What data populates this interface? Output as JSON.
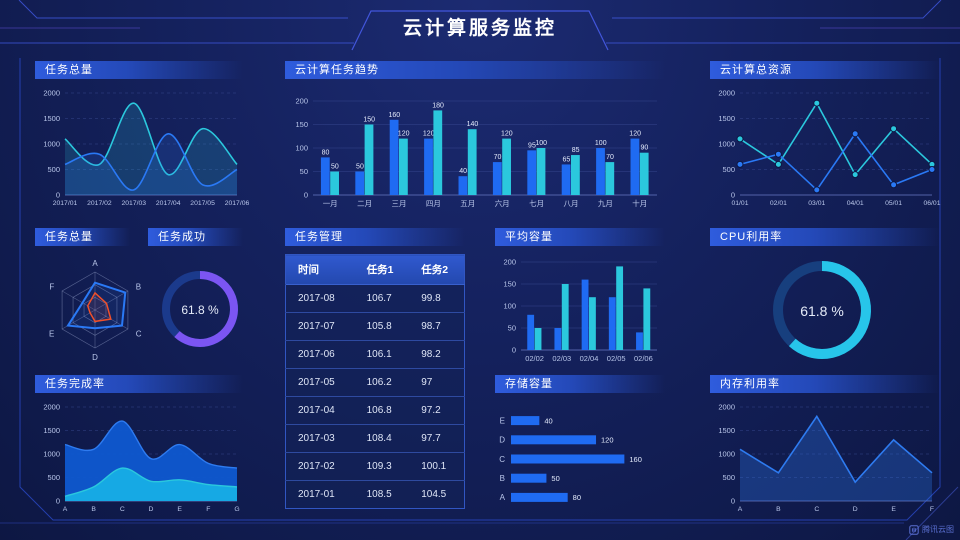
{
  "header": {
    "title": "云计算服务监控"
  },
  "watermark": {
    "label": "腾讯云图"
  },
  "panels": {
    "taskTotalLine": {
      "title": "任务总量"
    },
    "taskTrend": {
      "title": "云计算任务趋势"
    },
    "totalResource": {
      "title": "云计算总资源"
    },
    "taskRadar": {
      "title": "任务总量"
    },
    "taskSuccess": {
      "title": "任务成功"
    },
    "taskTable": {
      "title": "任务管理"
    },
    "avgCapacity": {
      "title": "平均容量"
    },
    "cpu": {
      "title": "CPU利用率"
    },
    "taskCompletion": {
      "title": "任务完成率"
    },
    "storage": {
      "title": "存储容量"
    },
    "memory": {
      "title": "内存利用率"
    }
  },
  "table": {
    "headers": [
      "时间",
      "任务1",
      "任务2"
    ],
    "rows": [
      [
        "2017-08",
        "106.7",
        "99.8"
      ],
      [
        "2017-07",
        "105.8",
        "98.7"
      ],
      [
        "2017-06",
        "106.1",
        "98.2"
      ],
      [
        "2017-05",
        "106.2",
        "97"
      ],
      [
        "2017-04",
        "106.8",
        "97.2"
      ],
      [
        "2017-03",
        "108.4",
        "97.7"
      ],
      [
        "2017-02",
        "109.3",
        "100.1"
      ],
      [
        "2017-01",
        "108.5",
        "104.5"
      ]
    ]
  },
  "chart_data": [
    {
      "id": "taskTotalLine",
      "type": "line",
      "smooth": true,
      "x": [
        "2017/01",
        "2017/02",
        "2017/03",
        "2017/04",
        "2017/05",
        "2017/06"
      ],
      "ylim": [
        0,
        2000
      ],
      "yticks": [
        0,
        500,
        1000,
        1500,
        2000
      ],
      "series": [
        {
          "name": "series-cyan",
          "color": "#2bc8dd",
          "fill": 0.18,
          "values": [
            1100,
            600,
            1800,
            400,
            1300,
            600
          ]
        },
        {
          "name": "series-blue",
          "color": "#2a79f5",
          "fill": 0.18,
          "values": [
            600,
            800,
            100,
            1200,
            200,
            500
          ]
        }
      ]
    },
    {
      "id": "taskTrend",
      "type": "bar",
      "labels": true,
      "categories": [
        "一月",
        "二月",
        "三月",
        "四月",
        "五月",
        "六月",
        "七月",
        "八月",
        "九月",
        "十月"
      ],
      "ylim": [
        0,
        200
      ],
      "yticks": [
        0,
        50,
        100,
        150,
        200
      ],
      "series": [
        {
          "name": "series-blue",
          "color": "#1f6bf2",
          "values": [
            80,
            50,
            160,
            120,
            40,
            70,
            95,
            65,
            100,
            120
          ]
        },
        {
          "name": "series-cyan",
          "color": "#2bc8dd",
          "values": [
            50,
            150,
            120,
            180,
            140,
            120,
            100,
            85,
            70,
            90
          ]
        }
      ]
    },
    {
      "id": "totalResource",
      "type": "line",
      "smooth": false,
      "marker": true,
      "x": [
        "01/01",
        "02/01",
        "03/01",
        "04/01",
        "05/01",
        "06/01"
      ],
      "ylim": [
        0,
        2000
      ],
      "yticks": [
        0,
        500,
        1000,
        1500,
        2000
      ],
      "series": [
        {
          "name": "series-cyan",
          "color": "#2bc8dd",
          "values": [
            1100,
            600,
            1800,
            400,
            1300,
            600
          ]
        },
        {
          "name": "series-blue",
          "color": "#2a79f5",
          "values": [
            600,
            800,
            100,
            1200,
            200,
            500
          ]
        }
      ]
    },
    {
      "id": "taskRadar",
      "type": "radar",
      "axes": [
        "A",
        "B",
        "C",
        "D",
        "E",
        "F"
      ],
      "max": 100,
      "levels": 3,
      "series": [
        {
          "name": "series-blue",
          "color": "#2a79f5",
          "values": [
            72,
            92,
            82,
            48,
            82,
            38
          ]
        },
        {
          "name": "series-red",
          "color": "#f0502a",
          "values": [
            45,
            35,
            48,
            30,
            15,
            22
          ]
        }
      ]
    },
    {
      "id": "taskSuccess",
      "type": "donut",
      "value": 61.8,
      "label": "61.8 %",
      "color": "#7b55f2",
      "track": "#1b3a8c"
    },
    {
      "id": "avgCapacity",
      "type": "bar",
      "labels": false,
      "categories": [
        "02/02",
        "02/03",
        "02/04",
        "02/05",
        "02/06"
      ],
      "ylim": [
        0,
        200
      ],
      "yticks": [
        0,
        50,
        100,
        150,
        200
      ],
      "series": [
        {
          "name": "series-blue",
          "color": "#1f6bf2",
          "values": [
            80,
            50,
            160,
            120,
            40
          ]
        },
        {
          "name": "series-cyan",
          "color": "#2bc8dd",
          "values": [
            50,
            150,
            120,
            190,
            140
          ]
        }
      ]
    },
    {
      "id": "cpu",
      "type": "donut",
      "value": 61.8,
      "label": "61.8 %",
      "color": "#27c5ea",
      "track": "#173f7e"
    },
    {
      "id": "taskCompletion",
      "type": "area",
      "smooth": true,
      "x": [
        "A",
        "B",
        "C",
        "D",
        "E",
        "F",
        "G"
      ],
      "ylim": [
        0,
        2000
      ],
      "yticks": [
        0,
        500,
        1000,
        1500,
        2000
      ],
      "series": [
        {
          "name": "series-outer",
          "color": "#0f58d0",
          "line": "#2e7bf0",
          "values": [
            1200,
            1100,
            1700,
            900,
            1200,
            800,
            700
          ]
        },
        {
          "name": "series-inner",
          "color": "#17aee6",
          "line": "#2bc8dd",
          "values": [
            100,
            300,
            700,
            420,
            450,
            350,
            300
          ]
        }
      ]
    },
    {
      "id": "storage",
      "type": "hbar",
      "color": "#1f6bf2",
      "xmax": 175,
      "categories": [
        "E",
        "D",
        "C",
        "B",
        "A"
      ],
      "values": [
        40,
        120,
        160,
        50,
        80
      ]
    },
    {
      "id": "memory",
      "type": "line",
      "smooth": false,
      "x": [
        "A",
        "B",
        "C",
        "D",
        "E",
        "F"
      ],
      "ylim": [
        0,
        2000
      ],
      "yticks": [
        0,
        500,
        1000,
        1500,
        2000
      ],
      "series": [
        {
          "name": "series-blue",
          "color": "#2e7bf0",
          "fill": 0.3,
          "values": [
            1100,
            600,
            1800,
            400,
            1300,
            600
          ]
        }
      ]
    }
  ]
}
